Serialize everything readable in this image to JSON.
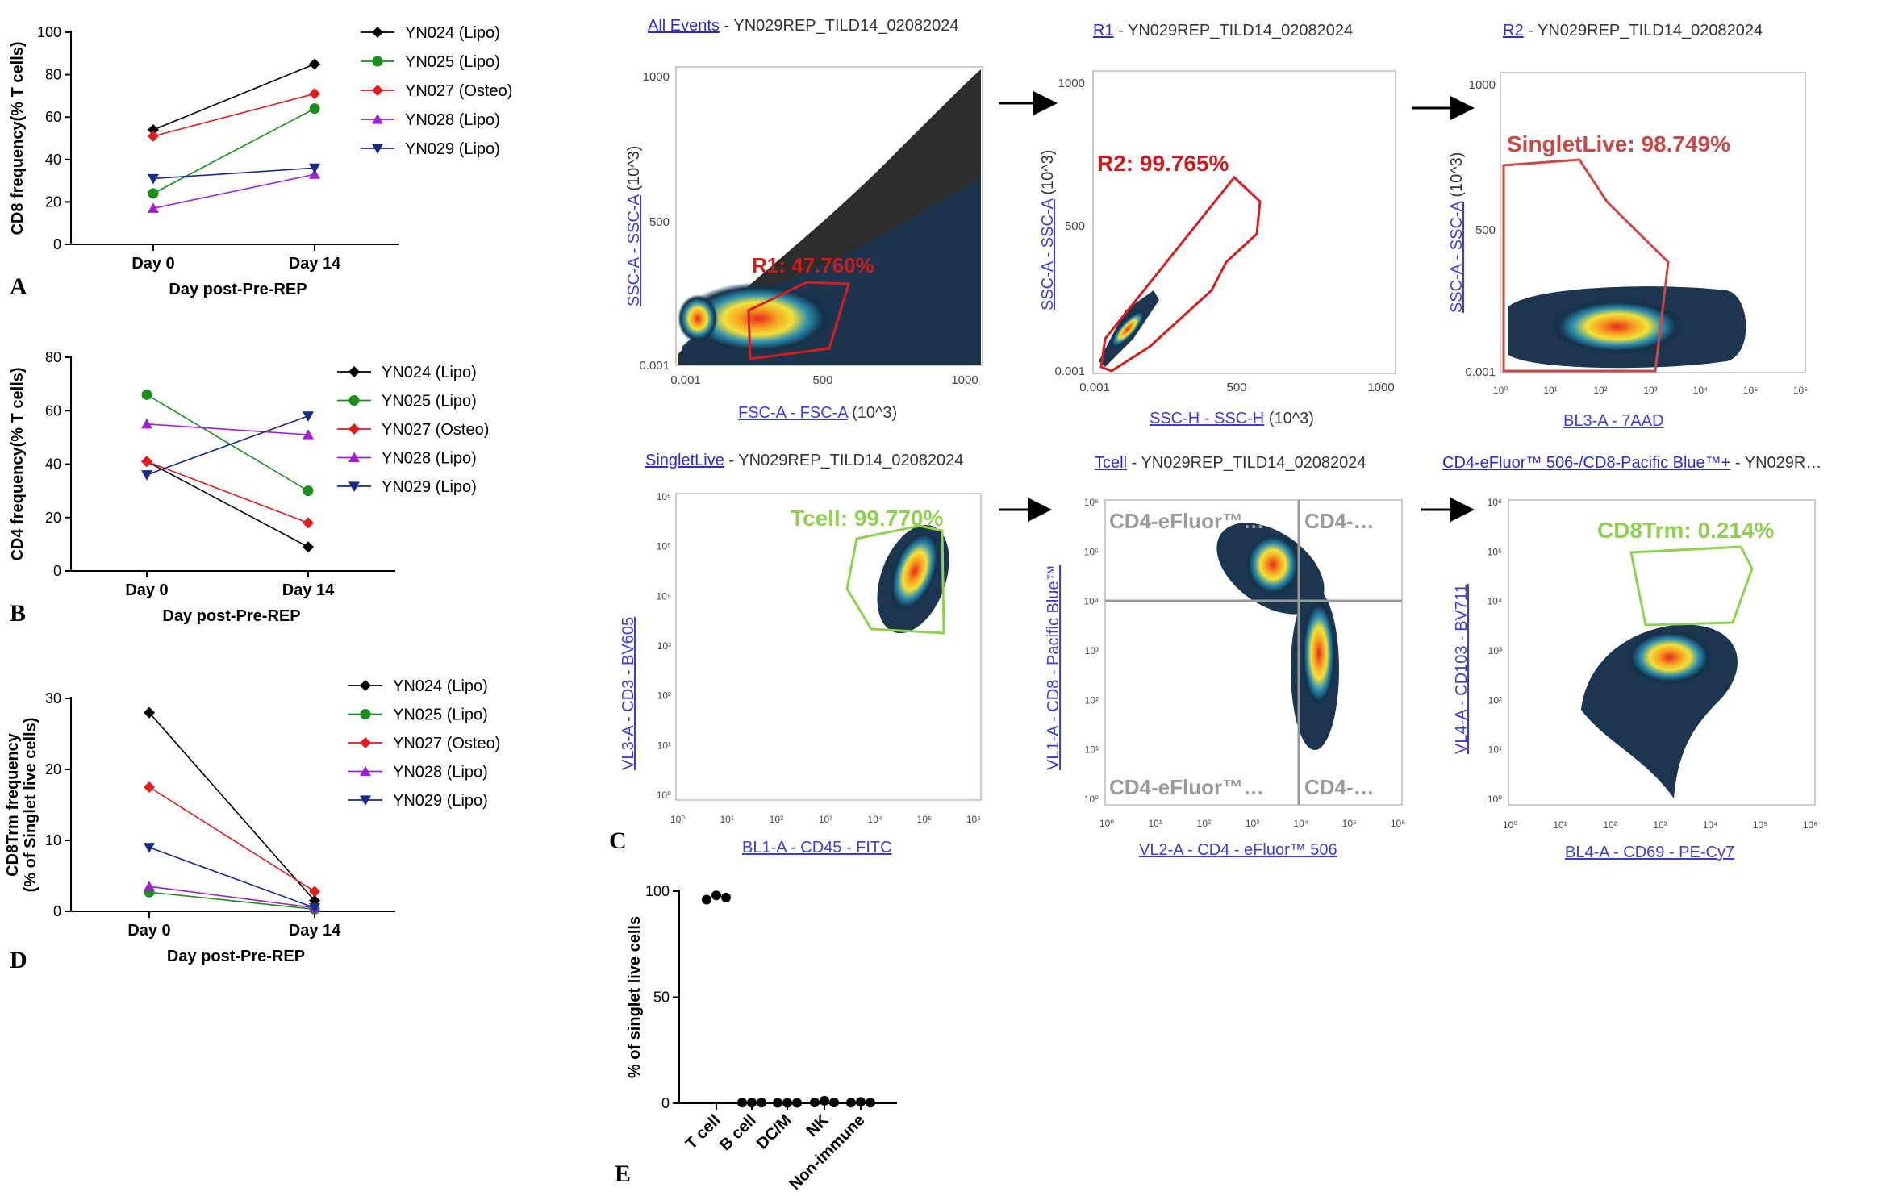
{
  "legend_entries": [
    {
      "label": "YN024 (Lipo)",
      "color": "#000000",
      "marker": "diamond"
    },
    {
      "label": "YN025 (Lipo)",
      "color": "#1a8f1a",
      "marker": "circle"
    },
    {
      "label": "YN027 (Osteo)",
      "color": "#e01c1c",
      "marker": "diamond"
    },
    {
      "label": "YN028 (Lipo)",
      "color": "#a020d0",
      "marker": "triangle-up"
    },
    {
      "label": "YN029 (Lipo)",
      "color": "#1a2a8a",
      "marker": "triangle-down"
    }
  ],
  "chart_data": [
    {
      "panel": "A",
      "type": "line",
      "categories": [
        "Day 0",
        "Day 14"
      ],
      "xlabel": "Day post-Pre-REP",
      "ylabel": "CD8 frequency(% T cells)",
      "ylim": [
        0,
        100
      ],
      "yticks": [
        "0",
        "20",
        "40",
        "60",
        "80",
        "100"
      ],
      "series": [
        {
          "name": "YN024 (Lipo)",
          "values": [
            54,
            85
          ]
        },
        {
          "name": "YN025 (Lipo)",
          "values": [
            24,
            64
          ]
        },
        {
          "name": "YN027 (Osteo)",
          "values": [
            51,
            71
          ]
        },
        {
          "name": "YN028 (Lipo)",
          "values": [
            17,
            33
          ]
        },
        {
          "name": "YN029 (Lipo)",
          "values": [
            31,
            36
          ]
        }
      ]
    },
    {
      "panel": "B",
      "type": "line",
      "categories": [
        "Day 0",
        "Day 14"
      ],
      "xlabel": "Day post-Pre-REP",
      "ylabel": "CD4 frequency(% T cells)",
      "ylim": [
        0,
        80
      ],
      "yticks": [
        "0",
        "20",
        "40",
        "60",
        "80"
      ],
      "series": [
        {
          "name": "YN024 (Lipo)",
          "values": [
            41,
            9
          ]
        },
        {
          "name": "YN025 (Lipo)",
          "values": [
            66,
            30
          ]
        },
        {
          "name": "YN027 (Osteo)",
          "values": [
            41,
            18
          ]
        },
        {
          "name": "YN028 (Lipo)",
          "values": [
            55,
            51
          ]
        },
        {
          "name": "YN029 (Lipo)",
          "values": [
            36,
            58
          ]
        }
      ]
    },
    {
      "panel": "D",
      "type": "line",
      "categories": [
        "Day 0",
        "Day 14"
      ],
      "xlabel": "Day post-Pre-REP",
      "ylabel": "CD8Trm frequency (% of Singlet live cells)",
      "ylabel_lines": [
        "CD8Trm frequency",
        "(% of Singlet live cells)"
      ],
      "ylim": [
        0,
        30
      ],
      "yticks": [
        "0",
        "10",
        "20",
        "30"
      ],
      "series": [
        {
          "name": "YN024 (Lipo)",
          "values": [
            28,
            1.5
          ]
        },
        {
          "name": "YN025 (Lipo)",
          "values": [
            2.7,
            0.3
          ]
        },
        {
          "name": "YN027 (Osteo)",
          "values": [
            17.5,
            2.8
          ]
        },
        {
          "name": "YN028 (Lipo)",
          "values": [
            3.5,
            0.5
          ]
        },
        {
          "name": "YN029 (Lipo)",
          "values": [
            9,
            0.5
          ]
        }
      ]
    },
    {
      "panel": "E",
      "type": "scatter",
      "categories": [
        "T cell",
        "B cell",
        "DC/M",
        "NK",
        "Non-immune"
      ],
      "ylabel": "% of singlet live cells",
      "ylim": [
        0,
        100
      ],
      "yticks": [
        "0",
        "50",
        "100"
      ],
      "points": [
        [
          96,
          98,
          97
        ],
        [
          0.3,
          0.3,
          0.3
        ],
        [
          0.2,
          0.2,
          0.2
        ],
        [
          0.4,
          1.2,
          0.4
        ],
        [
          0.3,
          0.6,
          0.3
        ]
      ]
    }
  ],
  "panel_labels": {
    "a": "A",
    "b": "B",
    "c": "C",
    "d": "D",
    "e": "E"
  },
  "facs": {
    "p1": {
      "title_link": "All Events",
      "title_rest": " - YN029REP_TILD14_02082024",
      "x_link": "FSC-A - FSC-A",
      "x_rest": " (10^3)",
      "y_link": "SSC-A - SSC-A",
      "y_rest": " (10^3)",
      "gate": "R1: 47.760%",
      "xticks": [
        "0.001",
        "500",
        "1000"
      ],
      "yticks": [
        "0.001",
        "500",
        "1000"
      ]
    },
    "p2": {
      "title_link": "R1",
      "title_rest": " - YN029REP_TILD14_02082024",
      "x_link": "SSC-H - SSC-H",
      "x_rest": " (10^3)",
      "y_link": "SSC-A - SSC-A",
      "y_rest": " (10^3)",
      "gate": "R2: 99.765%",
      "xticks": [
        "0.001",
        "500",
        "1000"
      ],
      "yticks": [
        "0.001",
        "500",
        "1000"
      ]
    },
    "p3": {
      "title_link": "R2",
      "title_rest": " - YN029REP_TILD14_02082024",
      "x_link": "BL3-A - 7AAD",
      "y_link": "SSC-A - SSC-A",
      "y_rest": " (10^3)",
      "gate": "SingletLive: 98.749%",
      "xticks": [
        "10⁰",
        "10¹",
        "10²",
        "10³",
        "10⁴",
        "10⁵",
        "10⁶"
      ],
      "yticks": [
        "0.001",
        "500",
        "1000"
      ]
    },
    "p4": {
      "title_link": "SingletLive",
      "title_rest": " - YN029REP_TILD14_02082024",
      "x_link": "BL1-A - CD45 - FITC",
      "y_link": "VL3-A - CD3 - BV605",
      "gate": "Tcell: 99.770%",
      "xticks": [
        "10⁰",
        "10¹",
        "10²",
        "10³",
        "10⁴",
        "10⁵",
        "10⁶"
      ],
      "yticks": [
        "10⁰",
        "10¹",
        "10²",
        "10³",
        "10⁴",
        "10⁵",
        "10⁶"
      ]
    },
    "p5": {
      "title_link": "Tcell",
      "title_rest": " - YN029REP_TILD14_02082024",
      "x_link": "VL2-A - CD4 - eFluor™ 506",
      "y_link": "VL1-A - CD8 - Pacific Blue™",
      "quad_tl": "CD4-eFluor™…",
      "quad_tr": "CD4-…",
      "quad_bl": "CD4-eFluor™…",
      "quad_br": "CD4-…",
      "xticks": [
        "10⁰",
        "10¹",
        "10²",
        "10³",
        "10⁴",
        "10⁵",
        "10⁶"
      ],
      "yticks": [
        "10⁰",
        "10¹",
        "10²",
        "10³",
        "10⁴",
        "10⁵",
        "10⁶"
      ]
    },
    "p6": {
      "title_link": "CD4-eFluor™ 506-/CD8-Pacific Blue™+",
      "title_rest": " - YN029R…",
      "x_link": "BL4-A - CD69 - PE-Cy7",
      "y_link": "VL4-A - CD103 - BV711",
      "gate": "CD8Trm: 0.214%",
      "xticks": [
        "10⁰",
        "10¹",
        "10²",
        "10³",
        "10⁴",
        "10⁵",
        "10⁶"
      ],
      "yticks": [
        "10⁰",
        "10¹",
        "10²",
        "10³",
        "10⁴",
        "10⁵",
        "10⁶"
      ]
    }
  },
  "colors": {
    "gate_red": "#e02020",
    "gate_green": "#8fd14f",
    "quad_gray": "#9a9a9a",
    "arrow": "#000000"
  }
}
